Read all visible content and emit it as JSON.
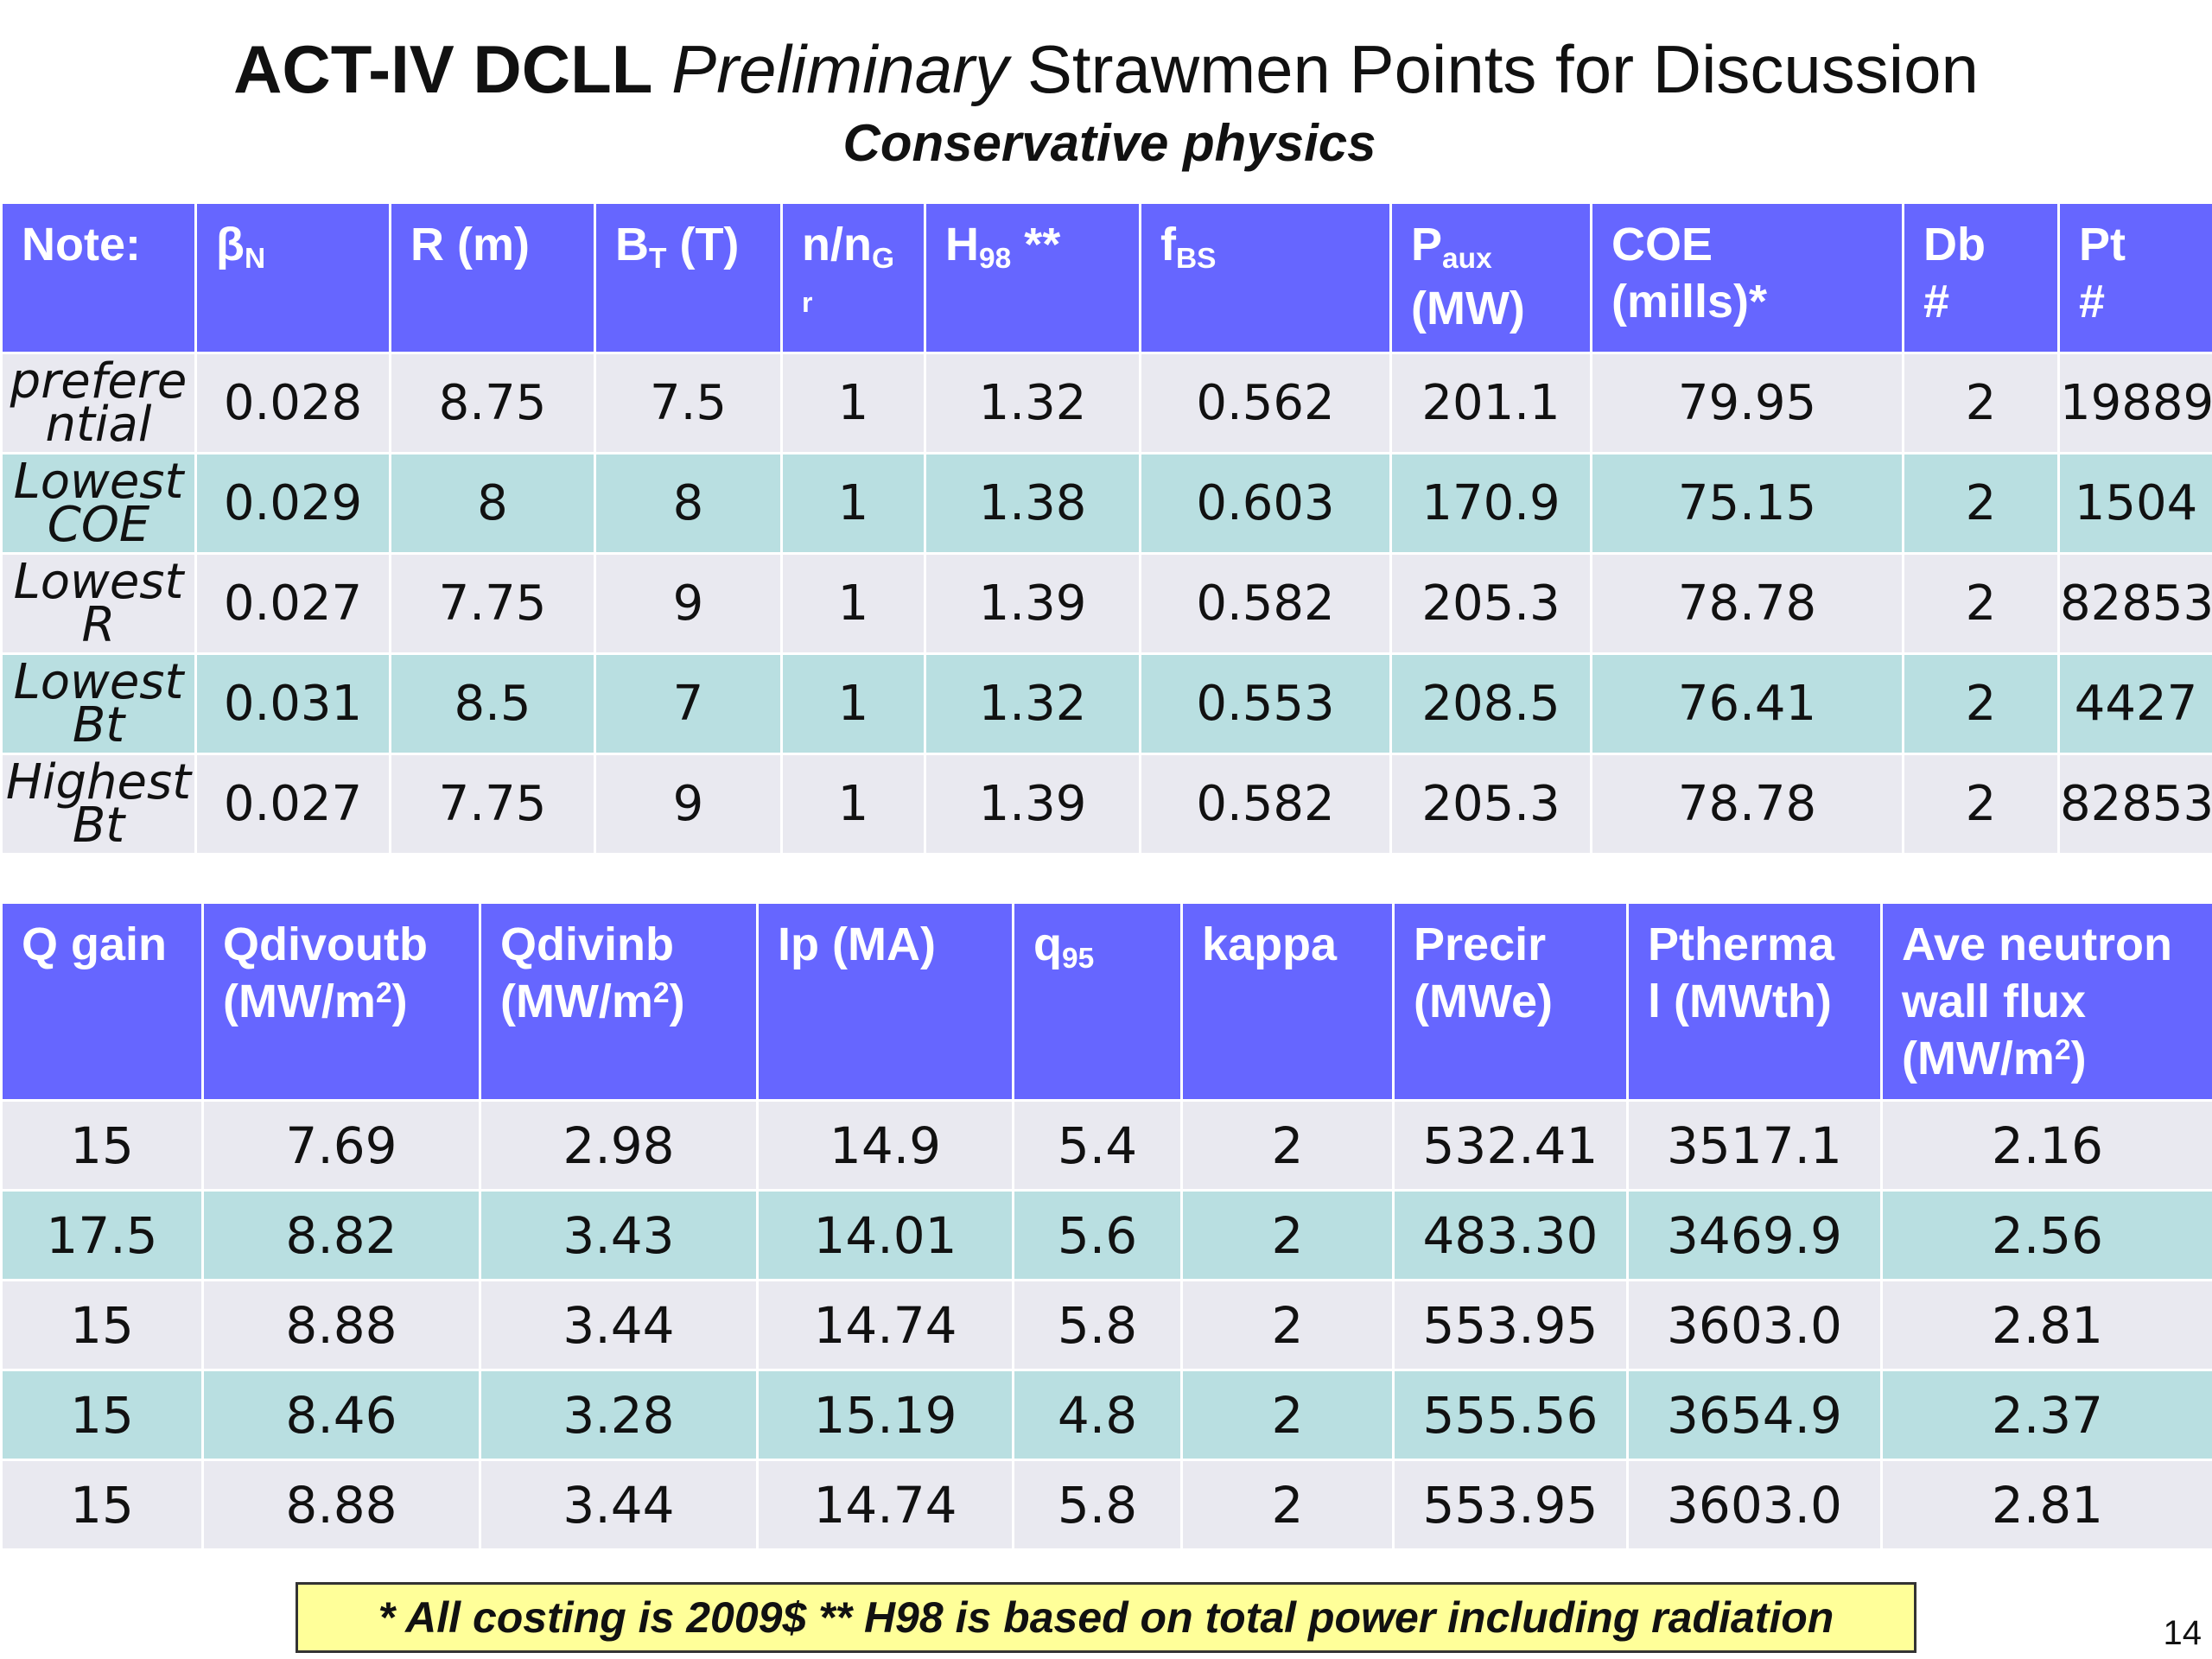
{
  "title": {
    "part1": "ACT-IV DCLL",
    "part2": "Preliminary",
    "part3": "Strawmen Points for Discussion"
  },
  "subtitle": "Conservative physics",
  "table1": {
    "headers": {
      "note": "Note:",
      "beta": "β",
      "beta_sub": "N",
      "r": "R (m)",
      "bt": "B",
      "bt_sub": "T",
      "bt_unit": " (T)",
      "ng": "n/n",
      "ng_sub": "G",
      "ng_r": "r",
      "h98": "H",
      "h98_sub": "98",
      "h98_mark": " **",
      "fbs": "f",
      "fbs_sub": "BS",
      "paux": "P",
      "paux_sub": "aux",
      "paux_unit": "(MW)",
      "coe": "COE",
      "coe_unit": "(mills)*",
      "db": "Db",
      "db_hash": "#",
      "pt": "Pt",
      "pt_hash": "#"
    },
    "rows": [
      {
        "label": "prefere ntial",
        "cells": [
          "0.028",
          "8.75",
          "7.5",
          "1",
          "1.32",
          "0.562",
          "201.1",
          "79.95",
          "2",
          "19889"
        ]
      },
      {
        "label": "Lowest COE",
        "cells": [
          "0.029",
          "8",
          "8",
          "1",
          "1.38",
          "0.603",
          "170.9",
          "75.15",
          "2",
          "1504"
        ]
      },
      {
        "label": "Lowest R",
        "cells": [
          "0.027",
          "7.75",
          "9",
          "1",
          "1.39",
          "0.582",
          "205.3",
          "78.78",
          "2",
          "82853"
        ]
      },
      {
        "label": "Lowest Bt",
        "cells": [
          "0.031",
          "8.5",
          "7",
          "1",
          "1.32",
          "0.553",
          "208.5",
          "76.41",
          "2",
          "4427"
        ]
      },
      {
        "label": "Highest Bt",
        "cells": [
          "0.027",
          "7.75",
          "9",
          "1",
          "1.39",
          "0.582",
          "205.3",
          "78.78",
          "2",
          "82853"
        ]
      }
    ]
  },
  "table2": {
    "headers": {
      "qgain": "Q gain",
      "qdivoutb": "Qdivoutb",
      "qdivoutb_unit_a": "(MW/m",
      "qdivoutb_unit_sup": "2",
      "qdivoutb_unit_b": ")",
      "qdivinb": "Qdivinb",
      "qdivinb_unit_a": "(MW/m",
      "qdivinb_unit_sup": "2",
      "qdivinb_unit_b": ")",
      "ip": "Ip (MA)",
      "q95": "q",
      "q95_sub": "95",
      "kappa": "kappa",
      "precir": "Precir",
      "precir_unit": "(MWe)",
      "ptherm_a": "Ptherma",
      "ptherm_b": "l (MWth)",
      "wall_a": "Ave neutron",
      "wall_b": "wall flux",
      "wall_unit_a": "(MW/m",
      "wall_unit_sup": "2",
      "wall_unit_b": ")"
    },
    "rows": [
      [
        "15",
        "7.69",
        "2.98",
        "14.9",
        "5.4",
        "2",
        "532.41",
        "3517.1",
        "2.16"
      ],
      [
        "17.5",
        "8.82",
        "3.43",
        "14.01",
        "5.6",
        "2",
        "483.30",
        "3469.9",
        "2.56"
      ],
      [
        "15",
        "8.88",
        "3.44",
        "14.74",
        "5.8",
        "2",
        "553.95",
        "3603.0",
        "2.81"
      ],
      [
        "15",
        "8.46",
        "3.28",
        "15.19",
        "4.8",
        "2",
        "555.56",
        "3654.9",
        "2.37"
      ],
      [
        "15",
        "8.88",
        "3.44",
        "14.74",
        "5.8",
        "2",
        "553.95",
        "3603.0",
        "2.81"
      ]
    ]
  },
  "footnote": "* All costing is 2009$    ** H98 is based on total power including radiation",
  "page_number": "14",
  "colors": {
    "header_blue": "#6666ff",
    "row_light": "#e9e9f0",
    "row_teal": "#b9dfe1",
    "note_yellow": "#ffff99"
  }
}
